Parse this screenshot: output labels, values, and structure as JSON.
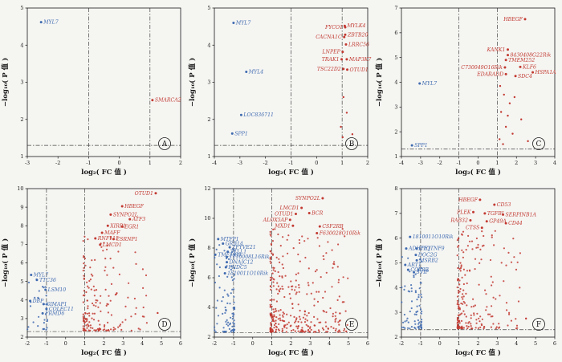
{
  "colors": {
    "red": "#c23a31",
    "blue": "#3f6bb0",
    "axis": "#1a1a1a",
    "threshold": "#444444",
    "background": "#f5f5f2"
  },
  "axes": {
    "xlabel": "log₂( FC 值 )",
    "ylabel": "−log₁₀( P 值 )"
  },
  "chart_data": [
    {
      "type": "scatter",
      "subtype": "volcano",
      "panel": "A",
      "xlim": [
        -3,
        2
      ],
      "ylim": [
        1,
        5
      ],
      "xticks": [
        -3,
        -2,
        -1,
        0,
        1,
        2
      ],
      "yticks": [
        1,
        2,
        3,
        4,
        5
      ],
      "fc_thresholds": [
        -1,
        1
      ],
      "p_threshold": 1.3,
      "genes": [
        {
          "name": "MYL7",
          "g": "down",
          "x": -2.55,
          "y": 4.62,
          "side": "r"
        },
        {
          "name": "SMARCA2",
          "g": "up",
          "x": 1.08,
          "y": 2.52,
          "side": "r"
        }
      ],
      "extra": []
    },
    {
      "type": "scatter",
      "subtype": "volcano",
      "panel": "B",
      "xlim": [
        -4,
        2
      ],
      "ylim": [
        1,
        5
      ],
      "xticks": [
        -4,
        -3,
        -2,
        -1,
        0,
        1,
        2
      ],
      "yticks": [
        1,
        2,
        3,
        4,
        5
      ],
      "fc_thresholds": [
        -1,
        1
      ],
      "p_threshold": 1.3,
      "genes": [
        {
          "name": "MYL7",
          "g": "down",
          "x": -3.25,
          "y": 4.6,
          "side": "r"
        },
        {
          "name": "MYL4",
          "g": "down",
          "x": -2.75,
          "y": 3.28,
          "side": "r"
        },
        {
          "name": "LOC836711",
          "g": "down",
          "x": -2.95,
          "y": 2.12,
          "side": "r"
        },
        {
          "name": "SPP1",
          "g": "down",
          "x": -3.3,
          "y": 1.62,
          "side": "r"
        },
        {
          "name": "FYCO1",
          "g": "up",
          "x": 1.12,
          "y": 4.48,
          "side": "l"
        },
        {
          "name": "MYLK4",
          "g": "up",
          "x": 1.1,
          "y": 4.52,
          "side": "r"
        },
        {
          "name": "ZBTB20",
          "g": "up",
          "x": 1.12,
          "y": 4.28,
          "side": "r"
        },
        {
          "name": "CACNA1C",
          "g": "up",
          "x": 1.08,
          "y": 4.22,
          "side": "l"
        },
        {
          "name": "LRRC56",
          "g": "up",
          "x": 1.15,
          "y": 4.02,
          "side": "r"
        },
        {
          "name": "LNPEP",
          "g": "up",
          "x": 1.02,
          "y": 3.82,
          "side": "l"
        },
        {
          "name": "TRAK1",
          "g": "up",
          "x": 0.98,
          "y": 3.62,
          "side": "l"
        },
        {
          "name": "MAP3K7",
          "g": "up",
          "x": 1.18,
          "y": 3.62,
          "side": "r"
        },
        {
          "name": "TSC22D2",
          "g": "up",
          "x": 1.05,
          "y": 3.36,
          "side": "l"
        },
        {
          "name": "OTUD1",
          "g": "up",
          "x": 1.2,
          "y": 3.34,
          "side": "r"
        }
      ],
      "extra": [
        {
          "x": 1.05,
          "y": 2.6
        },
        {
          "x": 1.18,
          "y": 2.18
        },
        {
          "x": 0.95,
          "y": 1.8
        },
        {
          "x": 1.4,
          "y": 1.6
        },
        {
          "x": 1.02,
          "y": 1.52
        }
      ]
    },
    {
      "type": "scatter",
      "subtype": "volcano",
      "panel": "C",
      "xlim": [
        -4,
        4
      ],
      "ylim": [
        1,
        7
      ],
      "xticks": [
        -4,
        -3,
        -2,
        -1,
        0,
        1,
        2,
        3,
        4
      ],
      "yticks": [
        1,
        2,
        3,
        4,
        5,
        6,
        7
      ],
      "fc_thresholds": [
        -1,
        1
      ],
      "p_threshold": 1.3,
      "genes": [
        {
          "name": "HBEGF",
          "g": "up",
          "x": 2.45,
          "y": 6.55,
          "side": "l"
        },
        {
          "name": "KANK1",
          "g": "up",
          "x": 1.55,
          "y": 5.32,
          "side": "l"
        },
        {
          "name": "8430408G22Rik",
          "g": "up",
          "x": 1.55,
          "y": 5.1,
          "side": "r"
        },
        {
          "name": "TMEM252",
          "g": "up",
          "x": 1.45,
          "y": 4.9,
          "side": "r"
        },
        {
          "name": "C730049O16Rik",
          "g": "up",
          "x": 1.4,
          "y": 4.6,
          "side": "l"
        },
        {
          "name": "KLF6",
          "g": "up",
          "x": 2.2,
          "y": 4.62,
          "side": "r"
        },
        {
          "name": "EDARADD",
          "g": "up",
          "x": 1.45,
          "y": 4.33,
          "side": "l"
        },
        {
          "name": "SDC4",
          "g": "up",
          "x": 1.95,
          "y": 4.25,
          "side": "r"
        },
        {
          "name": "HSPA1A",
          "g": "up",
          "x": 2.85,
          "y": 4.4,
          "side": "r"
        },
        {
          "name": "MYL7",
          "g": "down",
          "x": -3.05,
          "y": 3.95,
          "side": "r"
        },
        {
          "name": "SPP1",
          "g": "down",
          "x": -3.45,
          "y": 1.45,
          "side": "r"
        }
      ],
      "extra": [
        {
          "x": 1.15,
          "y": 3.85
        },
        {
          "x": 1.35,
          "y": 3.5
        },
        {
          "x": 1.9,
          "y": 3.4
        },
        {
          "x": 1.65,
          "y": 3.15
        },
        {
          "x": 1.2,
          "y": 2.8
        },
        {
          "x": 1.55,
          "y": 2.65
        },
        {
          "x": 2.25,
          "y": 2.5
        },
        {
          "x": 1.45,
          "y": 2.2
        },
        {
          "x": 1.8,
          "y": 1.92
        },
        {
          "x": 1.12,
          "y": 1.7
        },
        {
          "x": 2.6,
          "y": 1.62
        },
        {
          "x": 1.3,
          "y": 1.5
        }
      ]
    },
    {
      "type": "scatter",
      "subtype": "volcano",
      "panel": "D",
      "xlim": [
        -2,
        6
      ],
      "ylim": [
        2,
        10
      ],
      "xticks": [
        -2,
        -1,
        0,
        1,
        2,
        3,
        4,
        5,
        6
      ],
      "yticks": [
        2,
        3,
        4,
        5,
        6,
        7,
        8,
        9,
        10
      ],
      "fc_thresholds": [
        -1,
        1
      ],
      "p_threshold": 2.3,
      "genes": [
        {
          "name": "OTUD1",
          "g": "up",
          "x": 4.7,
          "y": 9.75,
          "side": "l"
        },
        {
          "name": "HBEGF",
          "g": "up",
          "x": 2.95,
          "y": 9.05,
          "side": "r"
        },
        {
          "name": "SYNPO2L",
          "g": "up",
          "x": 2.35,
          "y": 8.6,
          "side": "r"
        },
        {
          "name": "ATF3",
          "g": "up",
          "x": 3.35,
          "y": 8.35,
          "side": "r"
        },
        {
          "name": "XIRP1",
          "g": "up",
          "x": 2.2,
          "y": 8.0,
          "side": "r"
        },
        {
          "name": "EGR1",
          "g": "up",
          "x": 2.95,
          "y": 7.95,
          "side": "r"
        },
        {
          "name": "MAFF",
          "g": "up",
          "x": 1.9,
          "y": 7.62,
          "side": "r"
        },
        {
          "name": "RNF115",
          "g": "up",
          "x": 1.55,
          "y": 7.32,
          "side": "r"
        },
        {
          "name": "CSRNP1",
          "g": "up",
          "x": 2.5,
          "y": 7.28,
          "side": "r"
        },
        {
          "name": "LMCD1",
          "g": "up",
          "x": 1.8,
          "y": 6.98,
          "side": "r"
        },
        {
          "name": "MYL7",
          "g": "down",
          "x": -1.8,
          "y": 5.35,
          "side": "r"
        },
        {
          "name": "TTC36",
          "g": "down",
          "x": -1.5,
          "y": 5.08,
          "side": "r"
        },
        {
          "name": "LSM10",
          "g": "down",
          "x": -1.05,
          "y": 4.55,
          "side": "r"
        },
        {
          "name": "DBP",
          "g": "down",
          "x": -1.85,
          "y": 3.95,
          "side": "r"
        },
        {
          "name": "GIMAP1",
          "g": "down",
          "x": -1.15,
          "y": 3.78,
          "side": "r"
        },
        {
          "name": "COLEC11",
          "g": "down",
          "x": -1.0,
          "y": 3.52,
          "side": "r"
        },
        {
          "name": "FRMD6",
          "g": "down",
          "x": -1.2,
          "y": 3.28,
          "side": "r"
        }
      ],
      "extra": [
        {
          "x": 4.8,
          "y": 3.3
        }
      ],
      "background": {
        "up": {
          "n": 170,
          "x": [
            0.92,
            4.4
          ],
          "y": [
            2.35,
            7.5
          ],
          "seed": 101
        },
        "down": {
          "n": 30,
          "x": [
            -2.0,
            -0.95
          ],
          "y": [
            2.4,
            5.2
          ],
          "seed": 102
        }
      }
    },
    {
      "type": "scatter",
      "subtype": "volcano",
      "panel": "E",
      "xlim": [
        -2,
        6
      ],
      "ylim": [
        2,
        12
      ],
      "xticks": [
        -2,
        -1,
        0,
        1,
        2,
        3,
        4,
        5,
        6
      ],
      "yticks": [
        2,
        4,
        6,
        8,
        10,
        12
      ],
      "fc_thresholds": [
        -1,
        1
      ],
      "p_threshold": 2.3,
      "genes": [
        {
          "name": "SYNPO2L",
          "g": "up",
          "x": 3.65,
          "y": 11.35,
          "side": "l"
        },
        {
          "name": "LMCD1",
          "g": "up",
          "x": 2.55,
          "y": 10.7,
          "side": "l"
        },
        {
          "name": "OTUD1",
          "g": "up",
          "x": 2.25,
          "y": 10.3,
          "side": "l"
        },
        {
          "name": "BCR",
          "g": "up",
          "x": 2.95,
          "y": 10.35,
          "side": "r"
        },
        {
          "name": "ALOX5AP",
          "g": "up",
          "x": 1.95,
          "y": 9.9,
          "side": "l"
        },
        {
          "name": "MXD1",
          "g": "up",
          "x": 2.1,
          "y": 9.5,
          "side": "l"
        },
        {
          "name": "CSF2RB",
          "g": "up",
          "x": 3.5,
          "y": 9.45,
          "side": "r"
        },
        {
          "name": "F630028O10Rik",
          "g": "up",
          "x": 3.35,
          "y": 9.0,
          "side": "r"
        },
        {
          "name": "MTFP1",
          "g": "down",
          "x": -1.8,
          "y": 8.6,
          "side": "r"
        },
        {
          "name": "GRB14",
          "g": "down",
          "x": -1.55,
          "y": 8.3,
          "side": "r"
        },
        {
          "name": "ZFYVE21",
          "g": "down",
          "x": -1.2,
          "y": 8.05,
          "side": "r"
        },
        {
          "name": "TTLL1",
          "g": "down",
          "x": -1.3,
          "y": 7.75,
          "side": "r"
        },
        {
          "name": "TMEM88",
          "g": "down",
          "x": -1.95,
          "y": 7.55,
          "side": "r"
        },
        {
          "name": "1110008L16Rik",
          "g": "down",
          "x": -1.35,
          "y": 7.4,
          "side": "r"
        },
        {
          "name": "DNAJC12",
          "g": "down",
          "x": -1.35,
          "y": 7.05,
          "side": "r"
        },
        {
          "name": "FNDC5",
          "g": "down",
          "x": -1.4,
          "y": 6.7,
          "side": "r"
        },
        {
          "name": "1810011O10Rik",
          "g": "down",
          "x": -1.45,
          "y": 6.3,
          "side": "r"
        }
      ],
      "extra": [
        {
          "x": 4.55,
          "y": 3.6
        }
      ],
      "background": {
        "up": {
          "n": 330,
          "x": [
            0.92,
            5.0
          ],
          "y": [
            2.35,
            9.3
          ],
          "seed": 201
        },
        "down": {
          "n": 90,
          "x": [
            -2.0,
            -0.95
          ],
          "y": [
            2.35,
            8.3
          ],
          "seed": 202
        }
      }
    },
    {
      "type": "scatter",
      "subtype": "volcano",
      "panel": "F",
      "xlim": [
        -2,
        6
      ],
      "ylim": [
        2,
        8
      ],
      "xticks": [
        -2,
        -1,
        0,
        1,
        2,
        3,
        4,
        5,
        6
      ],
      "yticks": [
        2,
        3,
        4,
        5,
        6,
        7,
        8
      ],
      "fc_thresholds": [
        -1,
        1
      ],
      "p_threshold": 2.3,
      "genes": [
        {
          "name": "HBEGF",
          "g": "up",
          "x": 2.1,
          "y": 7.55,
          "side": "l"
        },
        {
          "name": "CD53",
          "g": "up",
          "x": 2.85,
          "y": 7.35,
          "side": "r"
        },
        {
          "name": "PLEK",
          "g": "up",
          "x": 1.75,
          "y": 7.05,
          "side": "l"
        },
        {
          "name": "TGFBI",
          "g": "up",
          "x": 2.35,
          "y": 7.0,
          "side": "r"
        },
        {
          "name": "SERPINB1A",
          "g": "up",
          "x": 3.3,
          "y": 6.95,
          "side": "r"
        },
        {
          "name": "RAB32",
          "g": "up",
          "x": 1.6,
          "y": 6.72,
          "side": "l"
        },
        {
          "name": "GP49A",
          "g": "up",
          "x": 2.45,
          "y": 6.68,
          "side": "r"
        },
        {
          "name": "CD44",
          "g": "up",
          "x": 3.45,
          "y": 6.6,
          "side": "r"
        },
        {
          "name": "CTSS",
          "g": "up",
          "x": 2.2,
          "y": 6.42,
          "side": "l"
        },
        {
          "name": "1810011O10Rik",
          "g": "down",
          "x": -1.55,
          "y": 6.05,
          "side": "r"
        },
        {
          "name": "ADHFE1",
          "g": "down",
          "x": -1.75,
          "y": 5.58,
          "side": "r"
        },
        {
          "name": "C1QTNF9",
          "g": "down",
          "x": -1.2,
          "y": 5.58,
          "side": "r"
        },
        {
          "name": "DOC2G",
          "g": "down",
          "x": -1.25,
          "y": 5.32,
          "side": "r"
        },
        {
          "name": "MSRB2",
          "g": "down",
          "x": -1.2,
          "y": 5.1,
          "side": "r"
        },
        {
          "name": "ART1",
          "g": "down",
          "x": -1.8,
          "y": 4.92,
          "side": "r"
        },
        {
          "name": "COX8B",
          "g": "down",
          "x": -1.65,
          "y": 4.72,
          "side": "r"
        },
        {
          "name": "SVIP",
          "g": "down",
          "x": -1.35,
          "y": 4.62,
          "side": "r"
        }
      ],
      "extra": [
        {
          "x": 4.5,
          "y": 2.75
        }
      ],
      "background": {
        "up": {
          "n": 210,
          "x": [
            0.92,
            4.2
          ],
          "y": [
            2.35,
            6.3
          ],
          "seed": 301
        },
        "down": {
          "n": 75,
          "x": [
            -2.0,
            -0.95
          ],
          "y": [
            2.35,
            5.3
          ],
          "seed": 302
        }
      }
    }
  ]
}
